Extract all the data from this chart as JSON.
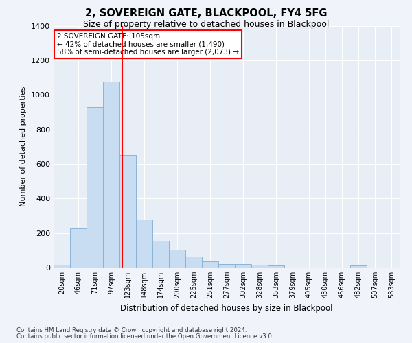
{
  "title": "2, SOVEREIGN GATE, BLACKPOOL, FY4 5FG",
  "subtitle": "Size of property relative to detached houses in Blackpool",
  "xlabel": "Distribution of detached houses by size in Blackpool",
  "ylabel": "Number of detached properties",
  "categories": [
    "20sqm",
    "46sqm",
    "71sqm",
    "97sqm",
    "123sqm",
    "148sqm",
    "174sqm",
    "200sqm",
    "225sqm",
    "251sqm",
    "277sqm",
    "302sqm",
    "328sqm",
    "353sqm",
    "379sqm",
    "405sqm",
    "430sqm",
    "456sqm",
    "482sqm",
    "507sqm",
    "533sqm"
  ],
  "values": [
    15,
    225,
    930,
    1075,
    650,
    280,
    155,
    105,
    65,
    35,
    20,
    20,
    15,
    10,
    0,
    0,
    0,
    0,
    10,
    0,
    0
  ],
  "bar_color": "#c9ddf2",
  "bar_edge_color": "#8ab4d8",
  "red_line_x": 3.67,
  "annotation_title": "2 SOVEREIGN GATE: 105sqm",
  "annotation_line1": "← 42% of detached houses are smaller (1,490)",
  "annotation_line2": "58% of semi-detached houses are larger (2,073) →",
  "ylim": [
    0,
    1400
  ],
  "yticks": [
    0,
    200,
    400,
    600,
    800,
    1000,
    1200,
    1400
  ],
  "footer1": "Contains HM Land Registry data © Crown copyright and database right 2024.",
  "footer2": "Contains public sector information licensed under the Open Government Licence v3.0.",
  "background_color": "#f0f4fa",
  "plot_bg_color": "#e8eef6"
}
